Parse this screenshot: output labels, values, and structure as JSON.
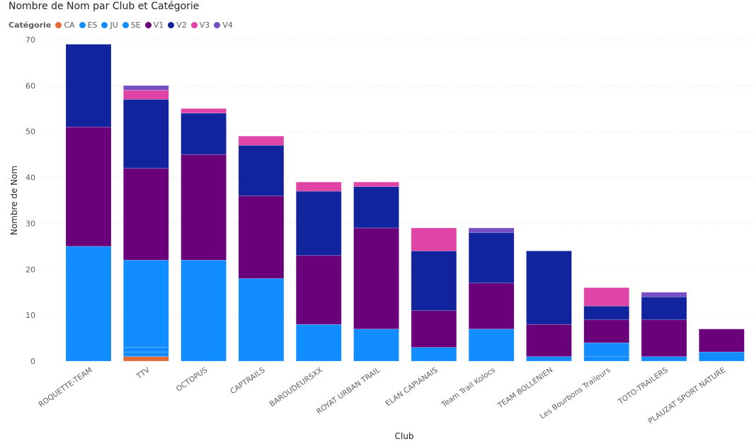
{
  "chart_data": {
    "type": "bar",
    "stacked": true,
    "title": "Nombre de Nom par Club et Catégorie",
    "legend_title": "Catégorie",
    "xlabel": "Club",
    "ylabel": "Nombre de Nom",
    "ylim": [
      0,
      70
    ],
    "yticks": [
      0,
      10,
      20,
      30,
      40,
      50,
      60,
      70
    ],
    "grid": true,
    "categories": [
      "ROQUETTE-TEAM",
      "TTV",
      "OCTOPUS",
      "CAPTRAILS",
      "BAROUDEURSXX",
      "ROYAT URBAN TRAIL",
      "ELAN CAPIANAIS",
      "Team Trail Kolocs",
      "TEAM BOLLENIEN",
      "Les Bourbons Traileurs",
      "TOTO-TRAILERS",
      "PLAUZAT SPORT NATURE"
    ],
    "series": [
      {
        "name": "CA",
        "color": "#E66C37",
        "values": [
          0,
          1,
          0,
          0,
          0,
          0,
          0,
          0,
          0,
          0,
          0,
          0
        ]
      },
      {
        "name": "ES",
        "color": "#118DFF",
        "values": [
          0,
          1,
          0,
          0,
          0,
          0,
          0,
          0,
          0,
          1,
          0,
          0
        ]
      },
      {
        "name": "JU",
        "color": "#118DFF",
        "values": [
          0,
          1,
          0,
          0,
          0,
          0,
          0,
          0,
          0,
          0,
          0,
          0
        ]
      },
      {
        "name": "SE",
        "color": "#118DFF",
        "values": [
          25,
          19,
          22,
          18,
          8,
          7,
          3,
          7,
          1,
          3,
          1,
          2
        ]
      },
      {
        "name": "V1",
        "color": "#6B007B",
        "values": [
          26,
          20,
          23,
          18,
          15,
          22,
          8,
          10,
          7,
          5,
          8,
          5
        ]
      },
      {
        "name": "V2",
        "color": "#12239E",
        "values": [
          18,
          15,
          9,
          11,
          14,
          9,
          13,
          11,
          16,
          3,
          5,
          0
        ]
      },
      {
        "name": "V3",
        "color": "#E044A7",
        "values": [
          0,
          2,
          1,
          2,
          2,
          1,
          5,
          0,
          0,
          4,
          0,
          0
        ]
      },
      {
        "name": "V4",
        "color": "#744EC2",
        "values": [
          0,
          1,
          0,
          0,
          0,
          0,
          0,
          1,
          0,
          0,
          1,
          0
        ]
      }
    ]
  }
}
